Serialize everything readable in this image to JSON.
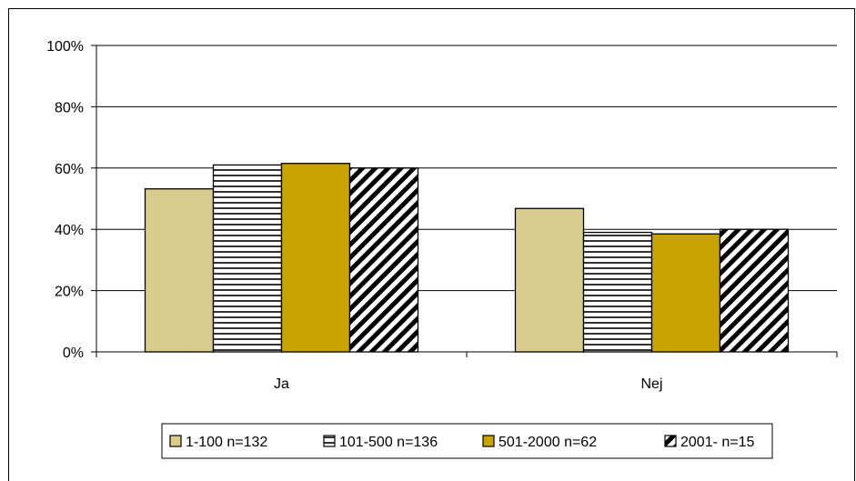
{
  "chart_data": {
    "type": "bar",
    "categories": [
      "Ja",
      "Nej"
    ],
    "series": [
      {
        "name": "1-100 n=132",
        "values": [
          53.2,
          46.8
        ],
        "color": "#d9cc8f",
        "pattern": "solid"
      },
      {
        "name": "101-500 n=136",
        "values": [
          61.0,
          39.0
        ],
        "color": "#ffffff",
        "pattern": "horizontal-lines"
      },
      {
        "name": "501-2000 n=62",
        "values": [
          61.5,
          38.5
        ],
        "color": "#c9a300",
        "pattern": "solid"
      },
      {
        "name": "2001- n=15",
        "values": [
          60.0,
          40.0
        ],
        "color": "#ffffff",
        "pattern": "diagonal-lines"
      }
    ],
    "y_ticks": [
      "0%",
      "20%",
      "40%",
      "60%",
      "80%",
      "100%"
    ],
    "ylim": [
      0,
      100
    ],
    "grid": true,
    "legend_position": "bottom",
    "title": "",
    "xlabel": "",
    "ylabel": ""
  }
}
